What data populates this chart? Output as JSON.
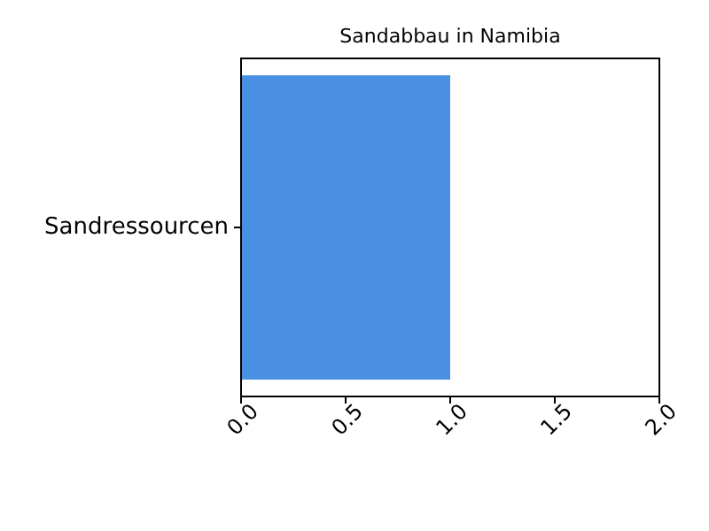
{
  "chart_data": {
    "type": "bar",
    "title": "Sandabbau in Namibia",
    "orientation": "horizontal",
    "categories": [
      "Sandressourcen"
    ],
    "values": [
      1.0
    ],
    "color": "#4a90e2",
    "xlim": [
      0,
      2
    ],
    "xticks": [
      {
        "value": 0,
        "label": "0.0"
      },
      {
        "value": 0.5,
        "label": "0.5"
      },
      {
        "value": 1,
        "label": "1.0"
      },
      {
        "value": 1.5,
        "label": "1.5"
      },
      {
        "value": 2,
        "label": "2.0"
      }
    ],
    "grid": false
  }
}
